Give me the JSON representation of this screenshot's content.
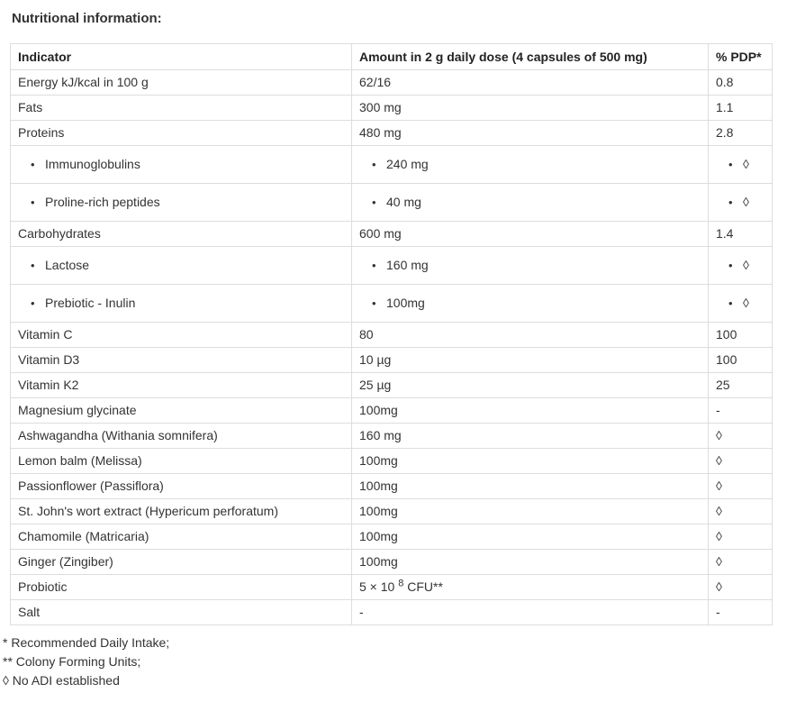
{
  "page": {
    "title": "Nutritional information:"
  },
  "table": {
    "bullet_char": "•",
    "headers": [
      "Indicator",
      "Amount in 2 g daily dose (4 capsules of 500 mg)",
      "% PDP*"
    ],
    "rows": [
      {
        "indicator": "Energy kJ/kcal in 100 g",
        "amount": "62/16",
        "pdp": "0.8",
        "sub": false
      },
      {
        "indicator": "Fats",
        "amount": "300 mg",
        "pdp": "1.1",
        "sub": false
      },
      {
        "indicator": "Proteins",
        "amount": "480 mg",
        "pdp": "2.8",
        "sub": false
      },
      {
        "indicator": "Immunoglobulins",
        "amount": "240 mg",
        "pdp": "◊",
        "sub": true
      },
      {
        "indicator": "Proline-rich peptides",
        "amount": "40 mg",
        "pdp": "◊",
        "sub": true
      },
      {
        "indicator": "Carbohydrates",
        "amount": "600 mg",
        "pdp": "1.4",
        "sub": false
      },
      {
        "indicator": "Lactose",
        "amount": "160 mg",
        "pdp": "◊",
        "sub": true
      },
      {
        "indicator": "Prebiotic - Inulin",
        "amount": "100mg",
        "pdp": "◊",
        "sub": true
      },
      {
        "indicator": "Vitamin C",
        "amount": "80",
        "pdp": "100",
        "sub": false
      },
      {
        "indicator": "Vitamin D3",
        "amount": "10 µg",
        "pdp": "100",
        "sub": false
      },
      {
        "indicator": "Vitamin K2",
        "amount": "25 µg",
        "pdp": "25",
        "sub": false
      },
      {
        "indicator": "Magnesium glycinate",
        "amount": "100mg",
        "pdp": "-",
        "sub": false
      },
      {
        "indicator": "Ashwagandha (Withania somnifera)",
        "amount": "160 mg",
        "pdp": "◊",
        "sub": false
      },
      {
        "indicator": "Lemon balm (Melissa)",
        "amount": "100mg",
        "pdp": "◊",
        "sub": false
      },
      {
        "indicator": "Passionflower (Passiflora)",
        "amount": "100mg",
        "pdp": "◊",
        "sub": false
      },
      {
        "indicator": "St. John's wort extract (Hypericum perforatum)",
        "amount": "100mg",
        "pdp": "◊",
        "sub": false
      },
      {
        "indicator": "Chamomile (Matricaria)",
        "amount": "100mg",
        "pdp": "◊",
        "sub": false
      },
      {
        "indicator": "Ginger (Zingiber)",
        "amount": "100mg",
        "pdp": "◊",
        "sub": false
      },
      {
        "indicator": "Probiotic",
        "amount": "5 × 10 ",
        "amount_sup": "8",
        "amount_after": " CFU**",
        "pdp": "◊",
        "sub": false
      },
      {
        "indicator": "Salt",
        "amount": "-",
        "pdp": "-",
        "sub": false
      }
    ]
  },
  "footnotes": [
    "* Recommended Daily Intake;",
    "** Colony Forming Units;",
    "◊ No ADI established"
  ],
  "colors": {
    "border": "#dddddd",
    "body_text": "#333333",
    "header_text": "#222222",
    "background": "#ffffff"
  }
}
